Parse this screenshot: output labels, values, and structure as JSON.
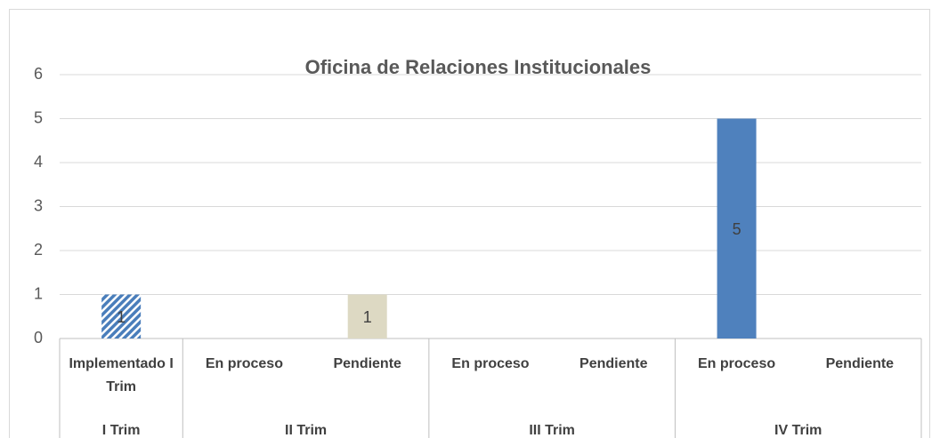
{
  "chart_data": {
    "type": "bar",
    "title": "Oficina de Relaciones Institucionales",
    "categories": [
      "Implementado I Trim",
      "En proceso",
      "Pendiente",
      "En proceso",
      "Pendiente",
      "En proceso",
      "Pendiente"
    ],
    "groups": [
      "I Trim",
      "II Trim",
      "III Trim",
      "IV Trim"
    ],
    "group_sizes": [
      1,
      2,
      2,
      2
    ],
    "values": [
      1,
      null,
      1,
      null,
      null,
      5,
      null
    ],
    "colors": [
      "#4a7ebb",
      null,
      "#ddd9c3",
      null,
      null,
      "#4f81bd",
      null
    ],
    "hatched": [
      true,
      false,
      false,
      false,
      false,
      false,
      false
    ],
    "ylim": [
      0,
      6
    ],
    "yticks": [
      0,
      1,
      2,
      3,
      4,
      5,
      6
    ],
    "grid": true
  }
}
